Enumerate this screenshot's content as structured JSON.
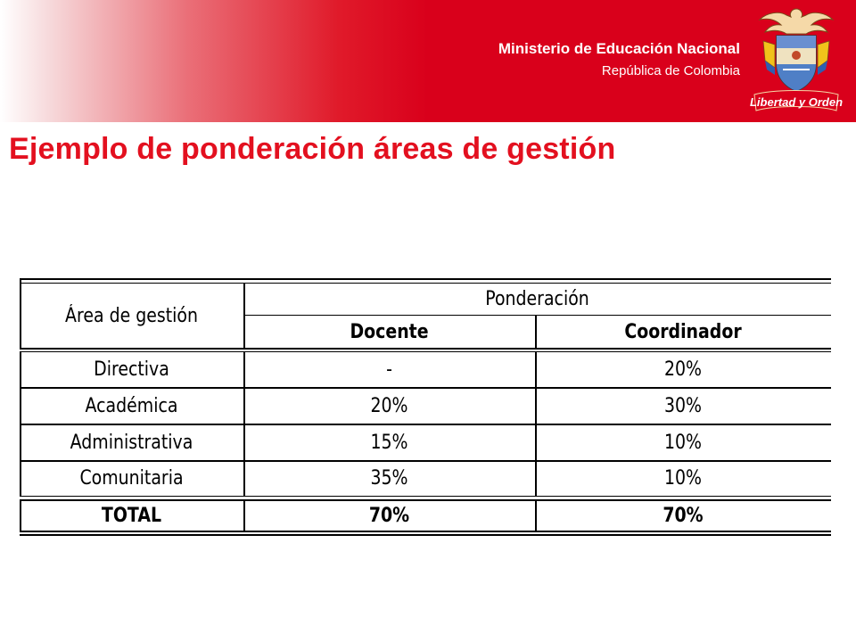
{
  "header": {
    "ministry": "Ministerio de Educación Nacional",
    "country": "República de Colombia",
    "emblem_caption": "Libertad y Orden"
  },
  "title": "Ejemplo de ponderación áreas de gestión",
  "table": {
    "area_header": "Área de gestión",
    "ponderacion_header": "Ponderación",
    "col_docente": "Docente",
    "col_coordinador": "Coordinador",
    "rows": [
      {
        "area": "Directiva",
        "docente": "-",
        "coordinador": "20%"
      },
      {
        "area": "Académica",
        "docente": "20%",
        "coordinador": "30%"
      },
      {
        "area": "Administrativa",
        "docente": "15%",
        "coordinador": "10%"
      },
      {
        "area": "Comunitaria",
        "docente": "35%",
        "coordinador": "10%"
      }
    ],
    "total": {
      "area": "TOTAL",
      "docente": "70%",
      "coordinador": "70%"
    }
  },
  "colors": {
    "brand_red": "#d9001b",
    "title_red": "#e3101f"
  }
}
